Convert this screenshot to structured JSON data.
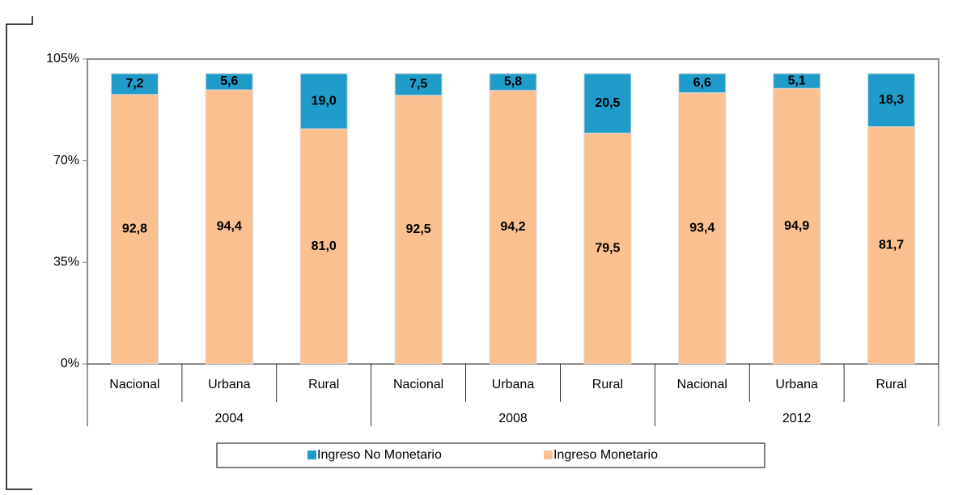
{
  "chart_data": {
    "type": "bar",
    "stacked": true,
    "categories": [
      "Nacional",
      "Urbana",
      "Rural",
      "Nacional",
      "Urbana",
      "Rural",
      "Nacional",
      "Urbana",
      "Rural"
    ],
    "groups": [
      "2004",
      "2008",
      "2012"
    ],
    "series": [
      {
        "name": "Ingreso  Monetario",
        "color": "#fac090",
        "values": [
          92.8,
          94.4,
          81.0,
          92.5,
          94.2,
          79.5,
          93.4,
          94.9,
          81.7
        ],
        "value_labels": [
          "92,8",
          "94,4",
          "81,0",
          "92,5",
          "94,2",
          "79,5",
          "93,4",
          "94,9",
          "81,7"
        ]
      },
      {
        "name": "Ingreso No Monetario",
        "color": "#1f9cc9",
        "values": [
          7.2,
          5.6,
          19.0,
          7.5,
          5.8,
          20.5,
          6.6,
          5.1,
          18.3
        ],
        "value_labels": [
          "7,2",
          "5,6",
          "19,0",
          "7,5",
          "5,8",
          "20,5",
          "6,6",
          "5,1",
          "18,3"
        ]
      }
    ],
    "ylim": [
      0,
      105
    ],
    "yticks": [
      {
        "value": 0,
        "label": "0%"
      },
      {
        "value": 35,
        "label": "35%"
      },
      {
        "value": 70,
        "label": "70%"
      },
      {
        "value": 105,
        "label": "105%"
      }
    ]
  }
}
